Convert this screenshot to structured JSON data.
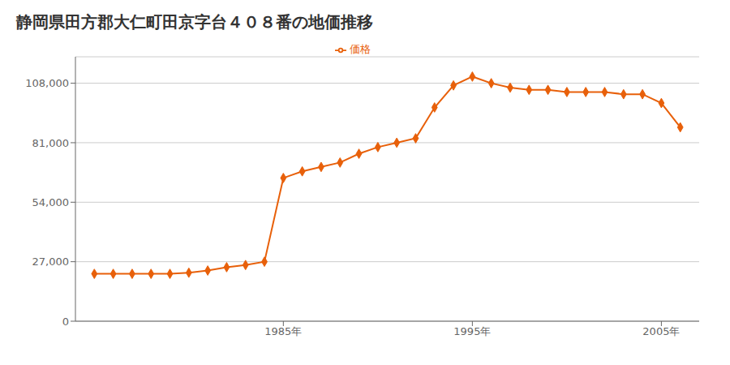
{
  "chart_data": {
    "type": "line",
    "title": "静岡県田方郡大仁町田京字台４０８番の地価推移",
    "x": [
      1975,
      1976,
      1977,
      1978,
      1979,
      1980,
      1981,
      1982,
      1983,
      1984,
      1985,
      1986,
      1987,
      1988,
      1989,
      1990,
      1991,
      1992,
      1993,
      1994,
      1995,
      1996,
      1997,
      1998,
      1999,
      2000,
      2001,
      2002,
      2003,
      2004,
      2005,
      2006
    ],
    "series": [
      {
        "name": "価格",
        "color": "#e8600a",
        "marker": "diamond",
        "values": [
          21500,
          21500,
          21500,
          21500,
          21500,
          22000,
          23000,
          24500,
          25500,
          27000,
          65000,
          68000,
          70000,
          72000,
          76000,
          79000,
          81000,
          83000,
          97000,
          107000,
          111000,
          108000,
          106000,
          105000,
          105000,
          104000,
          104000,
          104000,
          103000,
          103000,
          99000,
          88000
        ]
      }
    ],
    "xlim": [
      1974,
      2007
    ],
    "xticks": [
      {
        "value": 1985,
        "label": "1985年"
      },
      {
        "value": 1995,
        "label": "1995年"
      },
      {
        "value": 2005,
        "label": "2005年"
      }
    ],
    "ylim": [
      0,
      120000
    ],
    "yticks": [
      0,
      {
        "value": 27000,
        "label": "27,000"
      },
      {
        "value": 54000,
        "label": "54,000"
      },
      {
        "value": 81000,
        "label": "81,000"
      },
      {
        "value": 108000,
        "label": "108,000"
      }
    ],
    "grid": "y",
    "legend": "top"
  }
}
